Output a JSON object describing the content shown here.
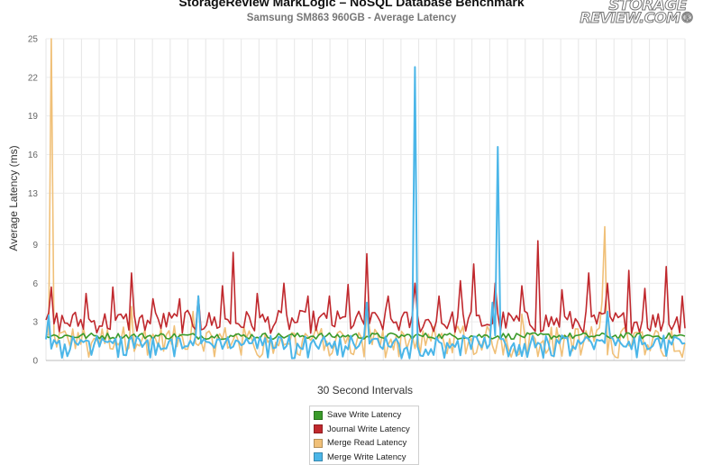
{
  "header": {
    "title": "StorageReview MarkLogic – NoSQL Database Benchmark",
    "subtitle": "Samsung SM863 960GB - Average Latency"
  },
  "logo": {
    "line1": "STORAGE",
    "line2": "REVIEW.COM®"
  },
  "chart_data": {
    "type": "line",
    "xlabel": "30 Second Intervals",
    "ylabel": "Average Latency (ms)",
    "ylim": [
      0,
      25
    ],
    "yticks": [
      "0",
      "3",
      "6",
      "9",
      "13",
      "16",
      "19",
      "22",
      "25"
    ],
    "x_count": 240,
    "grid": "vertical and horizontal lines",
    "legend_position": "bottom-center",
    "series": [
      {
        "name": "Save Write Latency",
        "color": "#3a9a2a",
        "typical": 1.9,
        "spikes": []
      },
      {
        "name": "Journal Write Latency",
        "color": "#c0282d",
        "typical": 3.0,
        "spikes": [
          [
            2,
            5.7
          ],
          [
            15,
            5.2
          ],
          [
            25,
            5.7
          ],
          [
            32,
            6.8
          ],
          [
            40,
            4.8
          ],
          [
            50,
            4.8
          ],
          [
            57,
            5.0
          ],
          [
            66,
            5.8
          ],
          [
            70,
            8.4
          ],
          [
            79,
            5.2
          ],
          [
            89,
            6.0
          ],
          [
            98,
            5.0
          ],
          [
            106,
            5.0
          ],
          [
            113,
            5.9
          ],
          [
            120,
            8.3
          ],
          [
            128,
            5.0
          ],
          [
            138,
            6.0
          ],
          [
            147,
            5.0
          ],
          [
            155,
            6.2
          ],
          [
            160,
            7.5
          ],
          [
            168,
            6.0
          ],
          [
            178,
            5.8
          ],
          [
            184,
            9.3
          ],
          [
            193,
            5.5
          ],
          [
            203,
            6.8
          ],
          [
            210,
            6.0
          ],
          [
            218,
            7.0
          ],
          [
            224,
            5.6
          ],
          [
            232,
            7.3
          ],
          [
            238,
            5.0
          ]
        ]
      },
      {
        "name": "Merge Read Latency",
        "color": "#f0c078",
        "typical": 1.7,
        "spikes": [
          [
            2,
            25.0
          ],
          [
            32,
            4.2
          ],
          [
            55,
            3.8
          ],
          [
            120,
            4.0
          ],
          [
            178,
            3.6
          ],
          [
            208,
            4.6
          ],
          [
            209,
            10.4
          ]
        ]
      },
      {
        "name": "Merge Write Latency",
        "color": "#4bb6e8",
        "typical": 1.4,
        "spikes": [
          [
            1,
            3.5
          ],
          [
            57,
            5.0
          ],
          [
            120,
            4.5
          ],
          [
            138,
            22.8
          ],
          [
            167,
            4.5
          ],
          [
            169,
            16.6
          ],
          [
            210,
            3.8
          ]
        ]
      }
    ]
  }
}
